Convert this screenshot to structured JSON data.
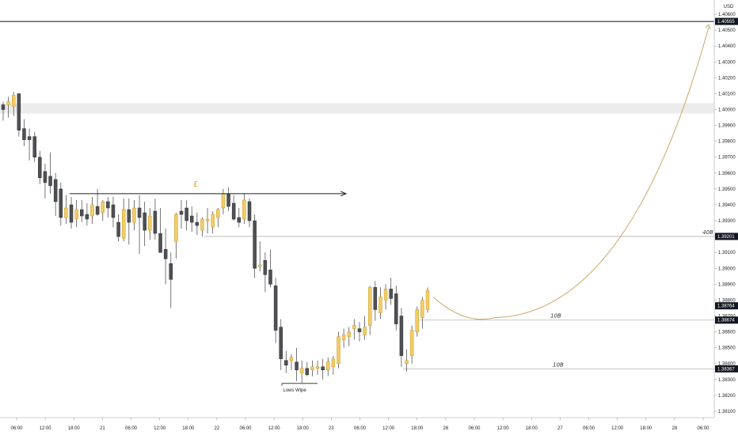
{
  "chart_data": {
    "type": "candlestick",
    "currency": "USD",
    "y_axis": {
      "ylim": [
        1.3806,
        1.4068
      ],
      "ticks": [
        "1.40600",
        "1.40500",
        "1.40400",
        "1.40300",
        "1.40200",
        "1.40100",
        "1.40000",
        "1.39900",
        "1.39800",
        "1.39700",
        "1.39600",
        "1.39500",
        "1.39400",
        "1.39300",
        "1.39200",
        "1.39100",
        "1.39000",
        "1.38900",
        "1.38800",
        "1.38700",
        "1.38600",
        "1.38500",
        "1.38400",
        "1.38300",
        "1.38200",
        "1.38100"
      ]
    },
    "x_axis": {
      "ticks": [
        "06:00",
        "12:00",
        "18:00",
        "21",
        "06:00",
        "12:00",
        "18:00",
        "22",
        "06:00",
        "12:00",
        "18:00",
        "23",
        "06:00",
        "12:00",
        "18:00",
        "26",
        "06:00",
        "12:00",
        "18:00",
        "27",
        "06:00",
        "12:00",
        "18:00",
        "28",
        "06:00"
      ]
    },
    "price_labels": [
      {
        "label": "1.40555",
        "value": 1.40555,
        "style": "dark"
      },
      {
        "label": "1.39201",
        "value": 1.39201,
        "style": "dark"
      },
      {
        "label": "1.38764",
        "value": 1.38764,
        "style": "dark"
      },
      {
        "label": "1.38674",
        "value": 1.38674,
        "style": "dark"
      },
      {
        "label": "1.38367",
        "value": 1.38367,
        "style": "dark"
      }
    ],
    "annotations": {
      "pound_symbol": "£",
      "lows_label": "Lows Wipe",
      "level_40b": "40B",
      "level_10b_upper": "10B",
      "level_10b_lower": "10B"
    },
    "levels": {
      "resistance_line": 1.40555,
      "supply_zone": [
        1.3999,
        1.4003
      ],
      "equal_highs": 1.3947,
      "level_40b": 1.39201,
      "level_10b_upper": 1.38674,
      "level_10b_lower": 1.38367,
      "lows_wipe": 1.38275
    },
    "projection": {
      "start": 1.3882,
      "min": 1.3869,
      "end": 1.4052
    },
    "candles": [
      {
        "o": 1.4003,
        "h": 1.4005,
        "l": 1.3993,
        "c": 1.4
      },
      {
        "o": 1.4003,
        "h": 1.4008,
        "l": 1.3995,
        "c": 1.4005
      },
      {
        "o": 1.4002,
        "h": 1.4011,
        "l": 1.3996,
        "c": 1.4009
      },
      {
        "o": 1.401,
        "h": 1.401,
        "l": 1.3983,
        "c": 1.3987
      },
      {
        "o": 1.3988,
        "h": 1.3994,
        "l": 1.3977,
        "c": 1.3981
      },
      {
        "o": 1.3983,
        "h": 1.3988,
        "l": 1.3968,
        "c": 1.3981
      },
      {
        "o": 1.3983,
        "h": 1.3986,
        "l": 1.3967,
        "c": 1.397
      },
      {
        "o": 1.397,
        "h": 1.3974,
        "l": 1.3953,
        "c": 1.3957
      },
      {
        "o": 1.3961,
        "h": 1.3966,
        "l": 1.3944,
        "c": 1.3954
      },
      {
        "o": 1.3958,
        "h": 1.3973,
        "l": 1.3947,
        "c": 1.3952
      },
      {
        "o": 1.3956,
        "h": 1.396,
        "l": 1.3933,
        "c": 1.3942
      },
      {
        "o": 1.395,
        "h": 1.3954,
        "l": 1.3927,
        "c": 1.3932
      },
      {
        "o": 1.3932,
        "h": 1.3946,
        "l": 1.3928,
        "c": 1.3938
      },
      {
        "o": 1.394,
        "h": 1.3945,
        "l": 1.3925,
        "c": 1.3929
      },
      {
        "o": 1.3931,
        "h": 1.3943,
        "l": 1.3926,
        "c": 1.3937
      },
      {
        "o": 1.3937,
        "h": 1.3943,
        "l": 1.3929,
        "c": 1.3933
      },
      {
        "o": 1.3934,
        "h": 1.3941,
        "l": 1.3927,
        "c": 1.3931
      },
      {
        "o": 1.3933,
        "h": 1.3945,
        "l": 1.3928,
        "c": 1.394
      },
      {
        "o": 1.3939,
        "h": 1.395,
        "l": 1.3933,
        "c": 1.3934
      },
      {
        "o": 1.3935,
        "h": 1.3943,
        "l": 1.393,
        "c": 1.3942
      },
      {
        "o": 1.3942,
        "h": 1.3945,
        "l": 1.3932,
        "c": 1.3938
      },
      {
        "o": 1.394,
        "h": 1.3945,
        "l": 1.3926,
        "c": 1.3932
      },
      {
        "o": 1.3929,
        "h": 1.3934,
        "l": 1.3917,
        "c": 1.392
      },
      {
        "o": 1.3919,
        "h": 1.3944,
        "l": 1.3917,
        "c": 1.3937
      },
      {
        "o": 1.3937,
        "h": 1.3944,
        "l": 1.3915,
        "c": 1.3929
      },
      {
        "o": 1.3929,
        "h": 1.3943,
        "l": 1.3924,
        "c": 1.3938
      },
      {
        "o": 1.3938,
        "h": 1.3946,
        "l": 1.3909,
        "c": 1.3932
      },
      {
        "o": 1.3935,
        "h": 1.3942,
        "l": 1.3914,
        "c": 1.3924
      },
      {
        "o": 1.3924,
        "h": 1.3938,
        "l": 1.3918,
        "c": 1.3933
      },
      {
        "o": 1.3936,
        "h": 1.3944,
        "l": 1.3918,
        "c": 1.3922
      },
      {
        "o": 1.3922,
        "h": 1.3938,
        "l": 1.391,
        "c": 1.391
      },
      {
        "o": 1.3912,
        "h": 1.3925,
        "l": 1.389,
        "c": 1.3906
      },
      {
        "o": 1.3903,
        "h": 1.391,
        "l": 1.3875,
        "c": 1.3893
      },
      {
        "o": 1.3917,
        "h": 1.3935,
        "l": 1.3906,
        "c": 1.3934
      },
      {
        "o": 1.3936,
        "h": 1.3943,
        "l": 1.3925,
        "c": 1.3934
      },
      {
        "o": 1.3938,
        "h": 1.3943,
        "l": 1.3924,
        "c": 1.393
      },
      {
        "o": 1.3933,
        "h": 1.3939,
        "l": 1.3923,
        "c": 1.3929
      },
      {
        "o": 1.3929,
        "h": 1.3935,
        "l": 1.3921,
        "c": 1.3927
      },
      {
        "o": 1.3924,
        "h": 1.3932,
        "l": 1.392,
        "c": 1.3931
      },
      {
        "o": 1.393,
        "h": 1.3938,
        "l": 1.3922,
        "c": 1.3931
      },
      {
        "o": 1.3926,
        "h": 1.3936,
        "l": 1.3922,
        "c": 1.3934
      },
      {
        "o": 1.3932,
        "h": 1.3938,
        "l": 1.3926,
        "c": 1.3937
      },
      {
        "o": 1.3938,
        "h": 1.395,
        "l": 1.3934,
        "c": 1.3947
      },
      {
        "o": 1.3947,
        "h": 1.3951,
        "l": 1.3936,
        "c": 1.3939
      },
      {
        "o": 1.3941,
        "h": 1.3946,
        "l": 1.393,
        "c": 1.3931
      },
      {
        "o": 1.3932,
        "h": 1.3938,
        "l": 1.3926,
        "c": 1.3929
      },
      {
        "o": 1.3931,
        "h": 1.3947,
        "l": 1.3928,
        "c": 1.3943
      },
      {
        "o": 1.3942,
        "h": 1.3944,
        "l": 1.3926,
        "c": 1.393
      },
      {
        "o": 1.393,
        "h": 1.3934,
        "l": 1.3894,
        "c": 1.39
      },
      {
        "o": 1.3901,
        "h": 1.3917,
        "l": 1.3898,
        "c": 1.3902
      },
      {
        "o": 1.3905,
        "h": 1.391,
        "l": 1.3885,
        "c": 1.3896
      },
      {
        "o": 1.3899,
        "h": 1.3912,
        "l": 1.3888,
        "c": 1.389
      },
      {
        "o": 1.3889,
        "h": 1.3894,
        "l": 1.3853,
        "c": 1.3861
      },
      {
        "o": 1.3863,
        "h": 1.3868,
        "l": 1.3836,
        "c": 1.3843
      },
      {
        "o": 1.3842,
        "h": 1.3848,
        "l": 1.3834,
        "c": 1.3839
      },
      {
        "o": 1.3842,
        "h": 1.3846,
        "l": 1.3836,
        "c": 1.3844
      },
      {
        "o": 1.3841,
        "h": 1.385,
        "l": 1.3829,
        "c": 1.3836
      },
      {
        "o": 1.3834,
        "h": 1.3842,
        "l": 1.3828,
        "c": 1.3837
      },
      {
        "o": 1.3837,
        "h": 1.3841,
        "l": 1.3832,
        "c": 1.3833
      },
      {
        "o": 1.3836,
        "h": 1.3842,
        "l": 1.3832,
        "c": 1.3838
      },
      {
        "o": 1.3837,
        "h": 1.3842,
        "l": 1.3833,
        "c": 1.3838
      },
      {
        "o": 1.3838,
        "h": 1.3843,
        "l": 1.383,
        "c": 1.3836
      },
      {
        "o": 1.3836,
        "h": 1.3844,
        "l": 1.3832,
        "c": 1.3841
      },
      {
        "o": 1.3838,
        "h": 1.3845,
        "l": 1.3833,
        "c": 1.3843
      },
      {
        "o": 1.384,
        "h": 1.386,
        "l": 1.3837,
        "c": 1.3857
      },
      {
        "o": 1.3855,
        "h": 1.3862,
        "l": 1.385,
        "c": 1.3858
      },
      {
        "o": 1.3857,
        "h": 1.3863,
        "l": 1.3851,
        "c": 1.386
      },
      {
        "o": 1.3862,
        "h": 1.3868,
        "l": 1.3855,
        "c": 1.3864
      },
      {
        "o": 1.3862,
        "h": 1.3866,
        "l": 1.3854,
        "c": 1.386
      },
      {
        "o": 1.3858,
        "h": 1.387,
        "l": 1.3855,
        "c": 1.3863
      },
      {
        "o": 1.3864,
        "h": 1.3889,
        "l": 1.3858,
        "c": 1.3888
      },
      {
        "o": 1.3888,
        "h": 1.3892,
        "l": 1.3867,
        "c": 1.3874
      },
      {
        "o": 1.3872,
        "h": 1.3888,
        "l": 1.3868,
        "c": 1.3882
      },
      {
        "o": 1.388,
        "h": 1.389,
        "l": 1.3874,
        "c": 1.3887
      },
      {
        "o": 1.3887,
        "h": 1.3894,
        "l": 1.3877,
        "c": 1.3881
      },
      {
        "o": 1.3884,
        "h": 1.3889,
        "l": 1.3861,
        "c": 1.3865
      },
      {
        "o": 1.387,
        "h": 1.3875,
        "l": 1.3838,
        "c": 1.3845
      },
      {
        "o": 1.384,
        "h": 1.3849,
        "l": 1.3835,
        "c": 1.3842
      },
      {
        "o": 1.3845,
        "h": 1.3864,
        "l": 1.384,
        "c": 1.3861
      },
      {
        "o": 1.386,
        "h": 1.3876,
        "l": 1.3857,
        "c": 1.3874
      },
      {
        "o": 1.3869,
        "h": 1.3882,
        "l": 1.3862,
        "c": 1.388
      },
      {
        "o": 1.3874,
        "h": 1.3888,
        "l": 1.3872,
        "c": 1.3886
      }
    ]
  }
}
